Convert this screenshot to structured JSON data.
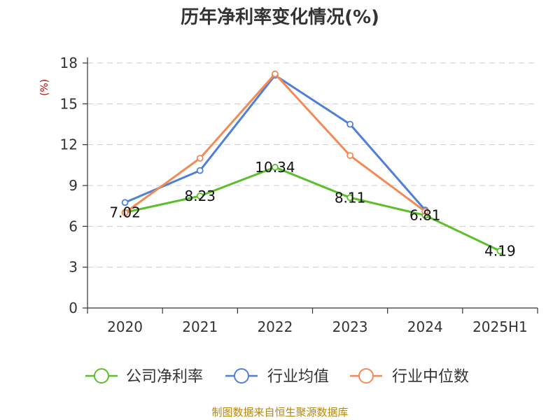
{
  "chart_data": {
    "type": "line",
    "title": "历年净利率变化情况(%)",
    "ylabel": "(%)",
    "xlabel": "",
    "categories": [
      "2020",
      "2021",
      "2022",
      "2023",
      "2024",
      "2025H1"
    ],
    "ylim": [
      0,
      18
    ],
    "yticks": [
      0,
      3,
      6,
      9,
      12,
      15,
      18
    ],
    "grid": true,
    "legend_position": "bottom",
    "series": [
      {
        "name": "公司净利率",
        "color": "#5cbf2a",
        "values": [
          7.02,
          8.23,
          10.34,
          8.11,
          6.81,
          4.19
        ],
        "labels": [
          "7.02",
          "8.23",
          "10.34",
          "8.11",
          "6.81",
          "4.19"
        ]
      },
      {
        "name": "行业均值",
        "color": "#4f7fd9",
        "values": [
          7.75,
          10.1,
          17.1,
          13.5,
          7.2,
          null
        ]
      },
      {
        "name": "行业中位数",
        "color": "#f28a55",
        "values": [
          7.0,
          11.0,
          17.2,
          11.2,
          7.1,
          null
        ]
      }
    ]
  },
  "source": "制图数据来自恒生聚源数据库"
}
